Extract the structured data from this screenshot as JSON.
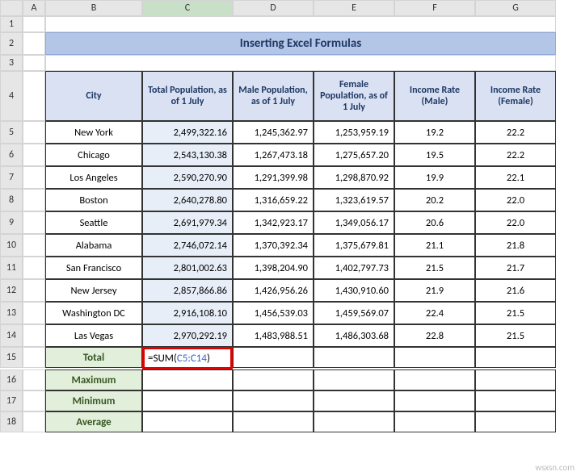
{
  "columns": [
    "A",
    "B",
    "C",
    "D",
    "E",
    "F",
    "G"
  ],
  "title": "Inserting Excel Formulas",
  "headers": {
    "city": "City",
    "totalPop": "Total Population, as of 1 July",
    "malePop": "Male Population, as of 1 July",
    "femalePop": "Female Population, as of 1 July",
    "incomeM": "Income Rate (Male)",
    "incomeF": "Income Rate (Female)"
  },
  "rows": [
    {
      "n": 5,
      "city": "New York",
      "total": "2,499,322.16",
      "male": "1,245,362.97",
      "female": "1,253,959.19",
      "im": "19.2",
      "if": "22.2"
    },
    {
      "n": 6,
      "city": "Chicago",
      "total": "2,543,130.38",
      "male": "1,267,473.18",
      "female": "1,275,657.20",
      "im": "19.5",
      "if": "22.2"
    },
    {
      "n": 7,
      "city": "Los Angeles",
      "total": "2,590,270.90",
      "male": "1,291,399.98",
      "female": "1,298,870.92",
      "im": "19.9",
      "if": "22.1"
    },
    {
      "n": 8,
      "city": "Boston",
      "total": "2,640,278.80",
      "male": "1,316,659.22",
      "female": "1,323,619.57",
      "im": "20.2",
      "if": "22.0"
    },
    {
      "n": 9,
      "city": "Seattle",
      "total": "2,691,979.34",
      "male": "1,342,923.17",
      "female": "1,349,056.17",
      "im": "20.6",
      "if": "22.0"
    },
    {
      "n": 10,
      "city": "Alabama",
      "total": "2,746,072.14",
      "male": "1,370,392.34",
      "female": "1,375,679.81",
      "im": "21.1",
      "if": "21.8"
    },
    {
      "n": 11,
      "city": "San Francisco",
      "total": "2,801,002.63",
      "male": "1,398,204.90",
      "female": "1,402,797.73",
      "im": "21.5",
      "if": "21.7"
    },
    {
      "n": 12,
      "city": "New Jersey",
      "total": "2,857,866.86",
      "male": "1,426,956.26",
      "female": "1,430,910.60",
      "im": "21.9",
      "if": "21.6"
    },
    {
      "n": 13,
      "city": "Washington DC",
      "total": "2,916,108.10",
      "male": "1,456,539.03",
      "female": "1,459,569.07",
      "im": "22.4",
      "if": "21.5"
    },
    {
      "n": 14,
      "city": "Las Vegas",
      "total": "2,970,292.19",
      "male": "1,483,988.51",
      "female": "1,486,303.68",
      "im": "22.8",
      "if": "21.5"
    }
  ],
  "summary": [
    "Total",
    "Maximum",
    "Minimum",
    "Average"
  ],
  "formula": {
    "prefix": "=SUM(",
    "range": "C5:C14",
    "suffix": ")"
  },
  "selectedCell": "C15",
  "watermark": "wsxsn.com",
  "colors": {
    "titleBg": "#b4c6e7",
    "headerBg": "#d9e1f2",
    "summaryBg": "#e2efda",
    "highlightBg": "#e8eef8",
    "formulaBorder": "#e30000"
  }
}
